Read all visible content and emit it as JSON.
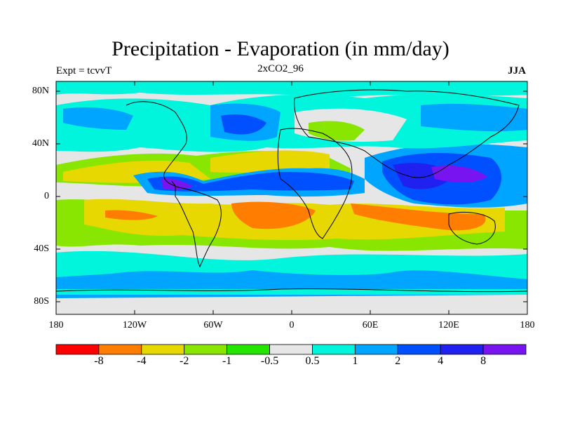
{
  "title": "Precipitation - Evaporation (in mm/day)",
  "left_string": "Expt = tcvvT",
  "center_string": "2xCO2_96",
  "right_string": "JJA",
  "lat_labels": [
    "80N",
    "40N",
    "0",
    "40S",
    "80S"
  ],
  "lon_labels": [
    "180",
    "120W",
    "60W",
    "0",
    "60E",
    "120E",
    "180"
  ],
  "colorbar": {
    "colors": [
      "#ff0000",
      "#ff7d00",
      "#e6d800",
      "#88e600",
      "#25e600",
      "#e6e6e6",
      "#00f5dc",
      "#00a5ff",
      "#0050ff",
      "#2020f0",
      "#7814f0"
    ],
    "tick_labels": [
      "-8",
      "-4",
      "-2",
      "-1",
      "-0.5",
      "0.5",
      "1",
      "2",
      "4",
      "8"
    ]
  },
  "map_colors": {
    "dry_strong": "#ff7d00",
    "dry": "#e6d800",
    "dry_weak": "#88e600",
    "neutral": "#e6e6e6",
    "wet_weak": "#00f5dc",
    "wet": "#00a5ff",
    "wet_strong": "#0050ff",
    "wet_very": "#2020f0",
    "wet_extreme": "#7814f0"
  }
}
